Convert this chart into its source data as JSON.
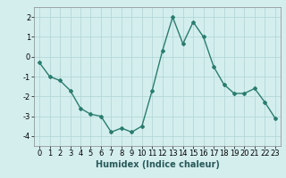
{
  "x": [
    0,
    1,
    2,
    3,
    4,
    5,
    6,
    7,
    8,
    9,
    10,
    11,
    12,
    13,
    14,
    15,
    16,
    17,
    18,
    19,
    20,
    21,
    22,
    23
  ],
  "y": [
    -0.3,
    -1.0,
    -1.2,
    -1.7,
    -2.6,
    -2.9,
    -3.0,
    -3.8,
    -3.6,
    -3.8,
    -3.5,
    -1.7,
    0.3,
    2.0,
    0.65,
    1.75,
    1.0,
    -0.5,
    -1.4,
    -1.85,
    -1.85,
    -1.6,
    -2.3,
    -3.1
  ],
  "line_color": "#2a7d6e",
  "marker": "D",
  "marker_size": 2.0,
  "bg_color": "#d4eeee",
  "grid_color": "#aed4d4",
  "xlabel": "Humidex (Indice chaleur)",
  "xlabel_fontsize": 7.0,
  "ylim": [
    -4.5,
    2.5
  ],
  "xlim": [
    -0.5,
    23.5
  ],
  "yticks": [
    -4,
    -3,
    -2,
    -1,
    0,
    1,
    2
  ],
  "xticks": [
    0,
    1,
    2,
    3,
    4,
    5,
    6,
    7,
    8,
    9,
    10,
    11,
    12,
    13,
    14,
    15,
    16,
    17,
    18,
    19,
    20,
    21,
    22,
    23
  ],
  "tick_fontsize": 6.0,
  "linewidth": 1.0
}
